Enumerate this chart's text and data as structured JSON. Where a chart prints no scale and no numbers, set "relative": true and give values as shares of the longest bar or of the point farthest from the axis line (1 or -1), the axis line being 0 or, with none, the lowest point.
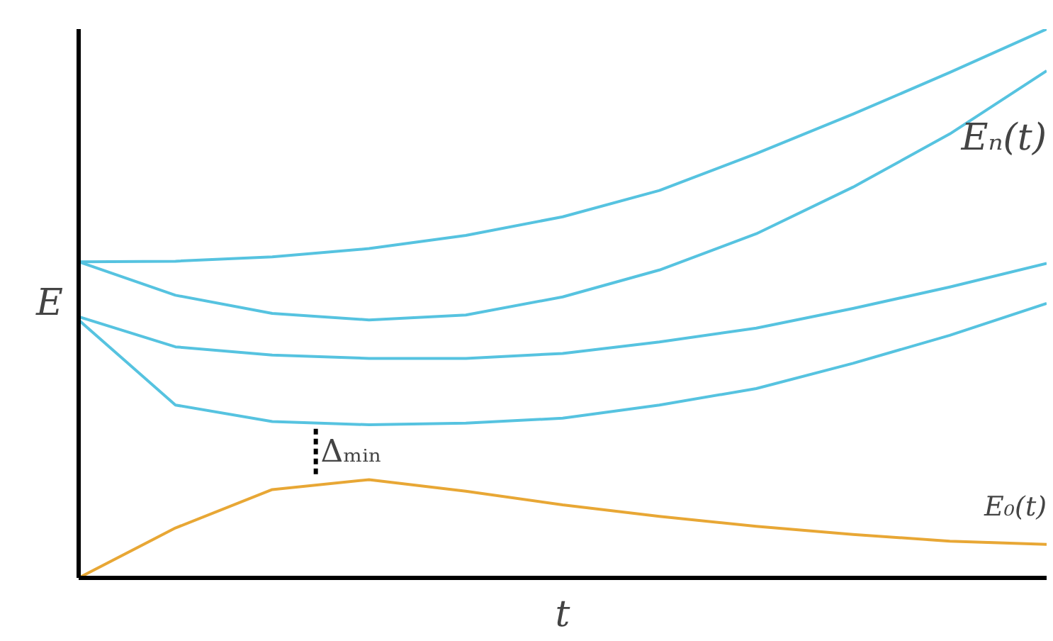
{
  "chart_data": {
    "type": "line",
    "relative": true,
    "xlabel": "t",
    "ylabel": "E",
    "grid": false,
    "legend": false,
    "marker": "none",
    "line_style": "solid",
    "categories": [
      null,
      null,
      null,
      null,
      null,
      null,
      null,
      null,
      null,
      null,
      null
    ],
    "series": [
      {
        "color": "#56c3e0",
        "values": [
          0.576,
          0.577,
          0.585,
          0.6,
          0.624,
          0.658,
          0.706,
          0.773,
          0.845,
          0.921,
          1
        ]
      },
      {
        "color": "#56c3e0",
        "values": [
          0.576,
          0.515,
          0.482,
          0.47,
          0.479,
          0.512,
          0.561,
          0.627,
          0.712,
          0.809,
          0.924
        ]
      },
      {
        "color": "#56c3e0",
        "values": [
          0.476,
          0.421,
          0.406,
          0.4,
          0.4,
          0.409,
          0.43,
          0.455,
          0.491,
          0.53,
          0.573
        ]
      },
      {
        "color": "#56c3e0",
        "values": [
          0.47,
          0.315,
          0.285,
          0.279,
          0.282,
          0.291,
          0.315,
          0.345,
          0.391,
          0.442,
          0.5
        ]
      },
      {
        "name": "E₀(t)",
        "color": "#e8a735",
        "values": [
          0,
          0.091,
          0.161,
          0.179,
          0.158,
          0.133,
          0.112,
          0.094,
          0.079,
          0.067,
          0.061
        ]
      }
    ],
    "annotations": [
      "Eₙ(t)",
      "Δₘᵢₙ"
    ]
  }
}
